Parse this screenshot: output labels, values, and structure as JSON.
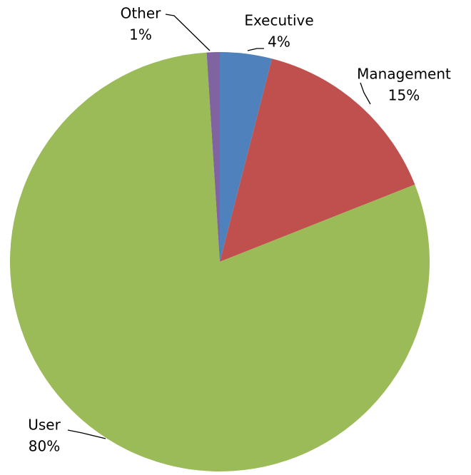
{
  "chart_data": {
    "type": "pie",
    "categories": [
      "Executive",
      "Management",
      "User",
      "Other"
    ],
    "values": [
      4,
      15,
      80,
      1
    ],
    "value_labels": [
      "4%",
      "15%",
      "80%",
      "1%"
    ],
    "colors": [
      "#4f81bd",
      "#c0504d",
      "#9bbb59",
      "#8064a2"
    ]
  }
}
